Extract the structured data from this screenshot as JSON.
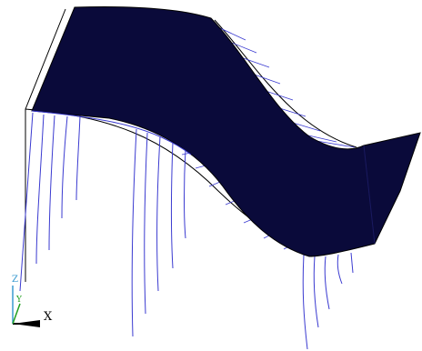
{
  "triad": {
    "z_label": "Z",
    "y_label": "Y",
    "x_label": "X"
  }
}
